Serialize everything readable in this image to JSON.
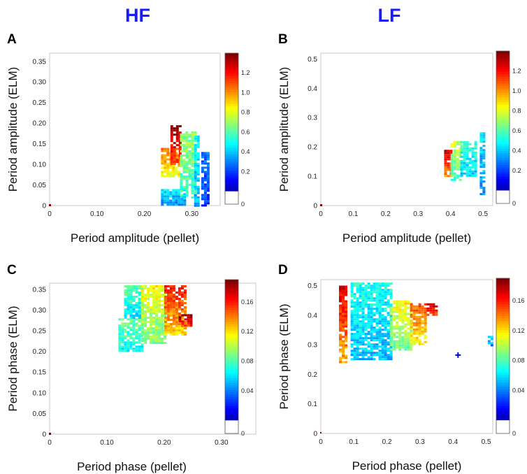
{
  "headers": {
    "left": "HF",
    "right": "LF"
  },
  "chart_data": [
    {
      "type": "heatmap",
      "panel_label": "A",
      "xlabel": "Period amplitude (pellet)",
      "ylabel": "Period amplitude (ELM)",
      "xlim": [
        0,
        0.36
      ],
      "ylim": [
        0,
        0.37
      ],
      "xticks": [
        0,
        0.1,
        0.2,
        0.3
      ],
      "xtick_labels": [
        "0",
        "0.10",
        "0.20",
        "0.30"
      ],
      "yticks": [
        0,
        0.05,
        0.1,
        0.15,
        0.2,
        0.25,
        0.3,
        0.35
      ],
      "ytick_labels": [
        "0",
        "0.05",
        "0.10",
        "0.15",
        "0.20",
        "0.25",
        "0.30",
        "0.35"
      ],
      "colorbar": {
        "min": 0,
        "max": 1.4,
        "ticks": [
          0,
          0.2,
          0.4,
          0.6,
          0.8,
          1.0,
          1.2
        ],
        "tick_labels": [
          "0",
          "0.2",
          "0.4",
          "0.6",
          "0.8",
          "1.0",
          "1.2"
        ]
      },
      "blobs": [
        {
          "x": [
            0.235,
            0.285
          ],
          "y": [
            0.0,
            0.04
          ],
          "value": 0.45
        },
        {
          "x": [
            0.235,
            0.275
          ],
          "y": [
            0.07,
            0.14
          ],
          "value": 1.0
        },
        {
          "x": [
            0.255,
            0.275
          ],
          "y": [
            0.1,
            0.195
          ],
          "value": 1.3
        },
        {
          "x": [
            0.275,
            0.305
          ],
          "y": [
            0.02,
            0.18
          ],
          "value": 0.7
        },
        {
          "x": [
            0.305,
            0.315
          ],
          "y": [
            0.0,
            0.17
          ],
          "value": 0.5
        },
        {
          "x": [
            0.32,
            0.335
          ],
          "y": [
            0.0,
            0.13
          ],
          "value": 0.3
        }
      ],
      "marker": [
        0,
        0
      ]
    },
    {
      "type": "heatmap",
      "panel_label": "B",
      "xlabel": "Period amplitude (pellet)",
      "ylabel": "Period amplitude (ELM)",
      "xlim": [
        0,
        0.53
      ],
      "ylim": [
        0,
        0.52
      ],
      "xticks": [
        0,
        0.1,
        0.2,
        0.3,
        0.4,
        0.5
      ],
      "xtick_labels": [
        "0",
        "0.1",
        "0.2",
        "0.3",
        "0.4",
        "0.5"
      ],
      "yticks": [
        0,
        0.1,
        0.2,
        0.3,
        0.4,
        0.5
      ],
      "ytick_labels": [
        "0",
        "0.1",
        "0.2",
        "0.3",
        "0.4",
        "0.5"
      ],
      "colorbar": {
        "min": 0,
        "max": 1.4,
        "ticks": [
          0,
          0.2,
          0.4,
          0.6,
          0.8,
          1.0,
          1.2
        ],
        "tick_labels": [
          "0",
          "0.2",
          "0.4",
          "0.6",
          "0.8",
          "1.0",
          "1.2"
        ]
      },
      "blobs": [
        {
          "x": [
            0.38,
            0.4
          ],
          "y": [
            0.1,
            0.19
          ],
          "value": 1.2
        },
        {
          "x": [
            0.4,
            0.43
          ],
          "y": [
            0.09,
            0.22
          ],
          "value": 0.75
        },
        {
          "x": [
            0.43,
            0.48
          ],
          "y": [
            0.1,
            0.22
          ],
          "value": 0.55
        },
        {
          "x": [
            0.49,
            0.505
          ],
          "y": [
            0.04,
            0.25
          ],
          "value": 0.45
        }
      ],
      "marker": [
        0,
        0
      ]
    },
    {
      "type": "heatmap",
      "panel_label": "C",
      "xlabel": "Period phase (pellet)",
      "ylabel": "Period phase (ELM)",
      "xlim": [
        0,
        0.36
      ],
      "ylim": [
        0,
        0.365
      ],
      "xticks": [
        0,
        0.1,
        0.2,
        0.3
      ],
      "xtick_labels": [
        "0",
        "0.10",
        "0.20",
        "0.30"
      ],
      "yticks": [
        0,
        0.05,
        0.1,
        0.15,
        0.2,
        0.25,
        0.3,
        0.35
      ],
      "ytick_labels": [
        "0",
        "0.05",
        "0.10",
        "0.15",
        "0.20",
        "0.25",
        "0.30",
        "0.35"
      ],
      "colorbar": {
        "min": 0,
        "max": 0.19,
        "ticks": [
          0,
          0.04,
          0.08,
          0.12,
          0.16
        ],
        "tick_labels": [
          "0",
          "0.04",
          "0.08",
          "0.12",
          "0.16"
        ]
      },
      "blobs": [
        {
          "x": [
            0.12,
            0.16
          ],
          "y": [
            0.2,
            0.28
          ],
          "value": 0.085
        },
        {
          "x": [
            0.13,
            0.16
          ],
          "y": [
            0.28,
            0.36
          ],
          "value": 0.08
        },
        {
          "x": [
            0.16,
            0.2
          ],
          "y": [
            0.22,
            0.36
          ],
          "value": 0.11
        },
        {
          "x": [
            0.2,
            0.235
          ],
          "y": [
            0.24,
            0.36
          ],
          "value": 0.15
        },
        {
          "x": [
            0.225,
            0.245
          ],
          "y": [
            0.26,
            0.29
          ],
          "value": 0.18
        }
      ],
      "marker": [
        0,
        0
      ]
    },
    {
      "type": "heatmap",
      "panel_label": "D",
      "xlabel": "Period phase (pellet)",
      "ylabel": "Period phase (ELM)",
      "xlim": [
        0,
        0.52
      ],
      "ylim": [
        0,
        0.52
      ],
      "xticks": [
        0,
        0.1,
        0.2,
        0.3,
        0.4,
        0.5
      ],
      "xtick_labels": [
        "0",
        "0.1",
        "0.2",
        "0.3",
        "0.4",
        "0.5"
      ],
      "yticks": [
        0,
        0.1,
        0.2,
        0.3,
        0.4,
        0.5
      ],
      "ytick_labels": [
        "0",
        "0.1",
        "0.2",
        "0.3",
        "0.4",
        "0.5"
      ],
      "colorbar": {
        "min": 0,
        "max": 0.19,
        "ticks": [
          0,
          0.04,
          0.08,
          0.12,
          0.16
        ],
        "tick_labels": [
          "0",
          "0.04",
          "0.08",
          "0.12",
          "0.16"
        ]
      },
      "blobs": [
        {
          "x": [
            0.055,
            0.075
          ],
          "y": [
            0.24,
            0.5
          ],
          "value": 0.16
        },
        {
          "x": [
            0.09,
            0.21
          ],
          "y": [
            0.25,
            0.51
          ],
          "value": 0.07
        },
        {
          "x": [
            0.21,
            0.27
          ],
          "y": [
            0.28,
            0.45
          ],
          "value": 0.11
        },
        {
          "x": [
            0.27,
            0.32
          ],
          "y": [
            0.3,
            0.44
          ],
          "value": 0.14
        },
        {
          "x": [
            0.32,
            0.35
          ],
          "y": [
            0.4,
            0.44
          ],
          "value": 0.17
        },
        {
          "x": [
            0.505,
            0.515
          ],
          "y": [
            0.3,
            0.33
          ],
          "value": 0.06
        }
      ],
      "marker": [
        0.415,
        0.265
      ],
      "marker_value": 0.02
    }
  ]
}
